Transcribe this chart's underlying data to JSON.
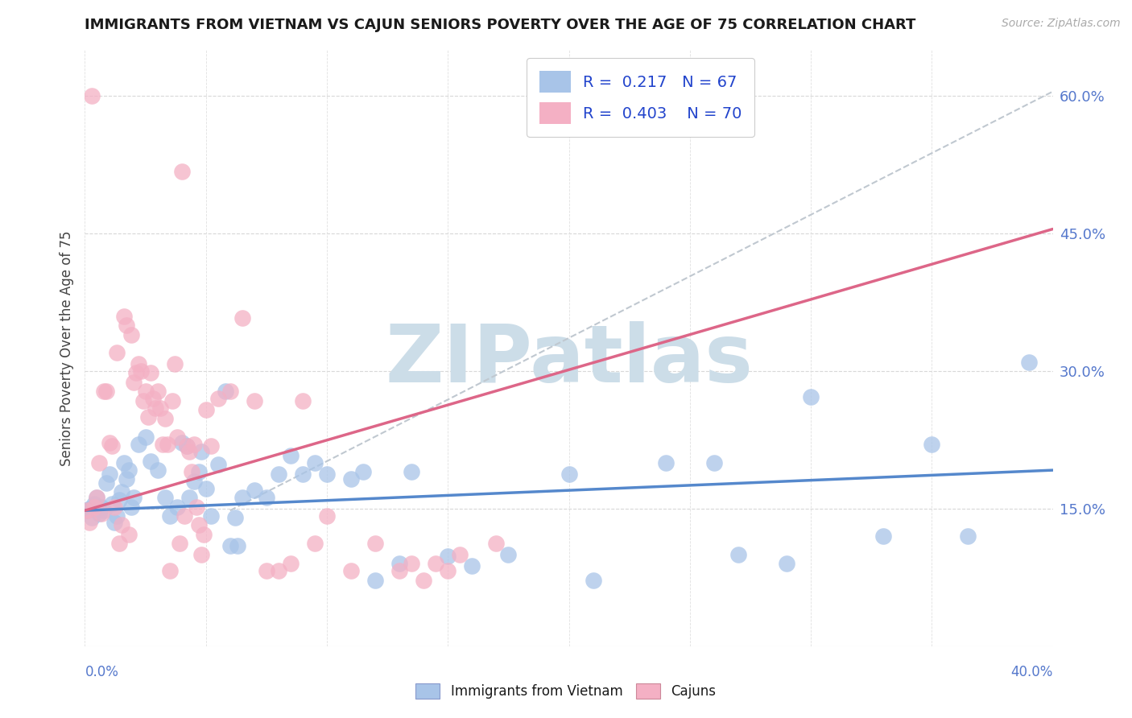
{
  "title": "IMMIGRANTS FROM VIETNAM VS CAJUN SENIORS POVERTY OVER THE AGE OF 75 CORRELATION CHART",
  "source": "Source: ZipAtlas.com",
  "ylabel": "Seniors Poverty Over the Age of 75",
  "color_vietnam": "#a8c4e8",
  "color_vietnam_line": "#5588cc",
  "color_cajun": "#f4b0c4",
  "color_cajun_line": "#dd6688",
  "watermark": "ZIPatlas",
  "watermark_color": "#ccdde8",
  "r_vietnam": "0.217",
  "n_vietnam": "67",
  "r_cajun": "0.403",
  "n_cajun": "70",
  "xmin": 0.0,
  "xmax": 0.4,
  "ymin": 0.0,
  "ymax": 0.65,
  "yticks": [
    0.15,
    0.3,
    0.45,
    0.6
  ],
  "ytick_labels": [
    "15.0%",
    "30.0%",
    "45.0%",
    "60.0%"
  ],
  "blue_line_x": [
    0.0,
    0.4
  ],
  "blue_line_y": [
    0.148,
    0.192
  ],
  "pink_line_x": [
    0.0,
    0.4
  ],
  "pink_line_y": [
    0.148,
    0.455
  ],
  "dash_line_x": [
    0.06,
    0.4
  ],
  "dash_line_y": [
    0.148,
    0.605
  ],
  "blue_dots_x": [
    0.001,
    0.002,
    0.003,
    0.004,
    0.005,
    0.006,
    0.007,
    0.008,
    0.009,
    0.01,
    0.011,
    0.012,
    0.013,
    0.014,
    0.015,
    0.016,
    0.017,
    0.018,
    0.019,
    0.02,
    0.022,
    0.025,
    0.027,
    0.03,
    0.033,
    0.035,
    0.038,
    0.04,
    0.042,
    0.043,
    0.045,
    0.047,
    0.048,
    0.05,
    0.052,
    0.055,
    0.058,
    0.06,
    0.062,
    0.063,
    0.065,
    0.07,
    0.075,
    0.08,
    0.085,
    0.09,
    0.095,
    0.1,
    0.11,
    0.115,
    0.12,
    0.13,
    0.135,
    0.15,
    0.16,
    0.175,
    0.2,
    0.21,
    0.24,
    0.26,
    0.27,
    0.29,
    0.3,
    0.33,
    0.35,
    0.365,
    0.39
  ],
  "blue_dots_y": [
    0.148,
    0.15,
    0.14,
    0.155,
    0.162,
    0.145,
    0.152,
    0.148,
    0.178,
    0.188,
    0.155,
    0.135,
    0.142,
    0.16,
    0.168,
    0.2,
    0.182,
    0.192,
    0.152,
    0.162,
    0.22,
    0.228,
    0.202,
    0.192,
    0.162,
    0.142,
    0.152,
    0.222,
    0.218,
    0.162,
    0.18,
    0.19,
    0.212,
    0.172,
    0.142,
    0.198,
    0.278,
    0.11,
    0.14,
    0.11,
    0.162,
    0.17,
    0.162,
    0.188,
    0.208,
    0.188,
    0.2,
    0.188,
    0.182,
    0.19,
    0.072,
    0.09,
    0.19,
    0.098,
    0.088,
    0.1,
    0.188,
    0.072,
    0.2,
    0.2,
    0.1,
    0.09,
    0.272,
    0.12,
    0.22,
    0.12,
    0.31
  ],
  "pink_dots_x": [
    0.001,
    0.002,
    0.003,
    0.004,
    0.005,
    0.006,
    0.007,
    0.008,
    0.009,
    0.01,
    0.011,
    0.012,
    0.013,
    0.014,
    0.015,
    0.016,
    0.017,
    0.018,
    0.019,
    0.02,
    0.021,
    0.022,
    0.023,
    0.024,
    0.025,
    0.026,
    0.027,
    0.028,
    0.029,
    0.03,
    0.031,
    0.032,
    0.033,
    0.034,
    0.035,
    0.036,
    0.037,
    0.038,
    0.039,
    0.04,
    0.041,
    0.042,
    0.043,
    0.044,
    0.045,
    0.046,
    0.047,
    0.048,
    0.049,
    0.05,
    0.052,
    0.055,
    0.06,
    0.065,
    0.07,
    0.075,
    0.08,
    0.085,
    0.09,
    0.095,
    0.1,
    0.11,
    0.12,
    0.13,
    0.135,
    0.14,
    0.145,
    0.15,
    0.155,
    0.17
  ],
  "pink_dots_y": [
    0.148,
    0.135,
    0.6,
    0.152,
    0.162,
    0.2,
    0.145,
    0.278,
    0.278,
    0.222,
    0.218,
    0.152,
    0.32,
    0.112,
    0.132,
    0.36,
    0.35,
    0.122,
    0.34,
    0.288,
    0.298,
    0.308,
    0.3,
    0.268,
    0.278,
    0.25,
    0.298,
    0.27,
    0.26,
    0.278,
    0.26,
    0.22,
    0.248,
    0.22,
    0.082,
    0.268,
    0.308,
    0.228,
    0.112,
    0.518,
    0.142,
    0.218,
    0.212,
    0.19,
    0.22,
    0.152,
    0.132,
    0.1,
    0.122,
    0.258,
    0.218,
    0.27,
    0.278,
    0.358,
    0.268,
    0.082,
    0.082,
    0.09,
    0.268,
    0.112,
    0.142,
    0.082,
    0.112,
    0.082,
    0.09,
    0.072,
    0.09,
    0.082,
    0.1,
    0.112
  ]
}
